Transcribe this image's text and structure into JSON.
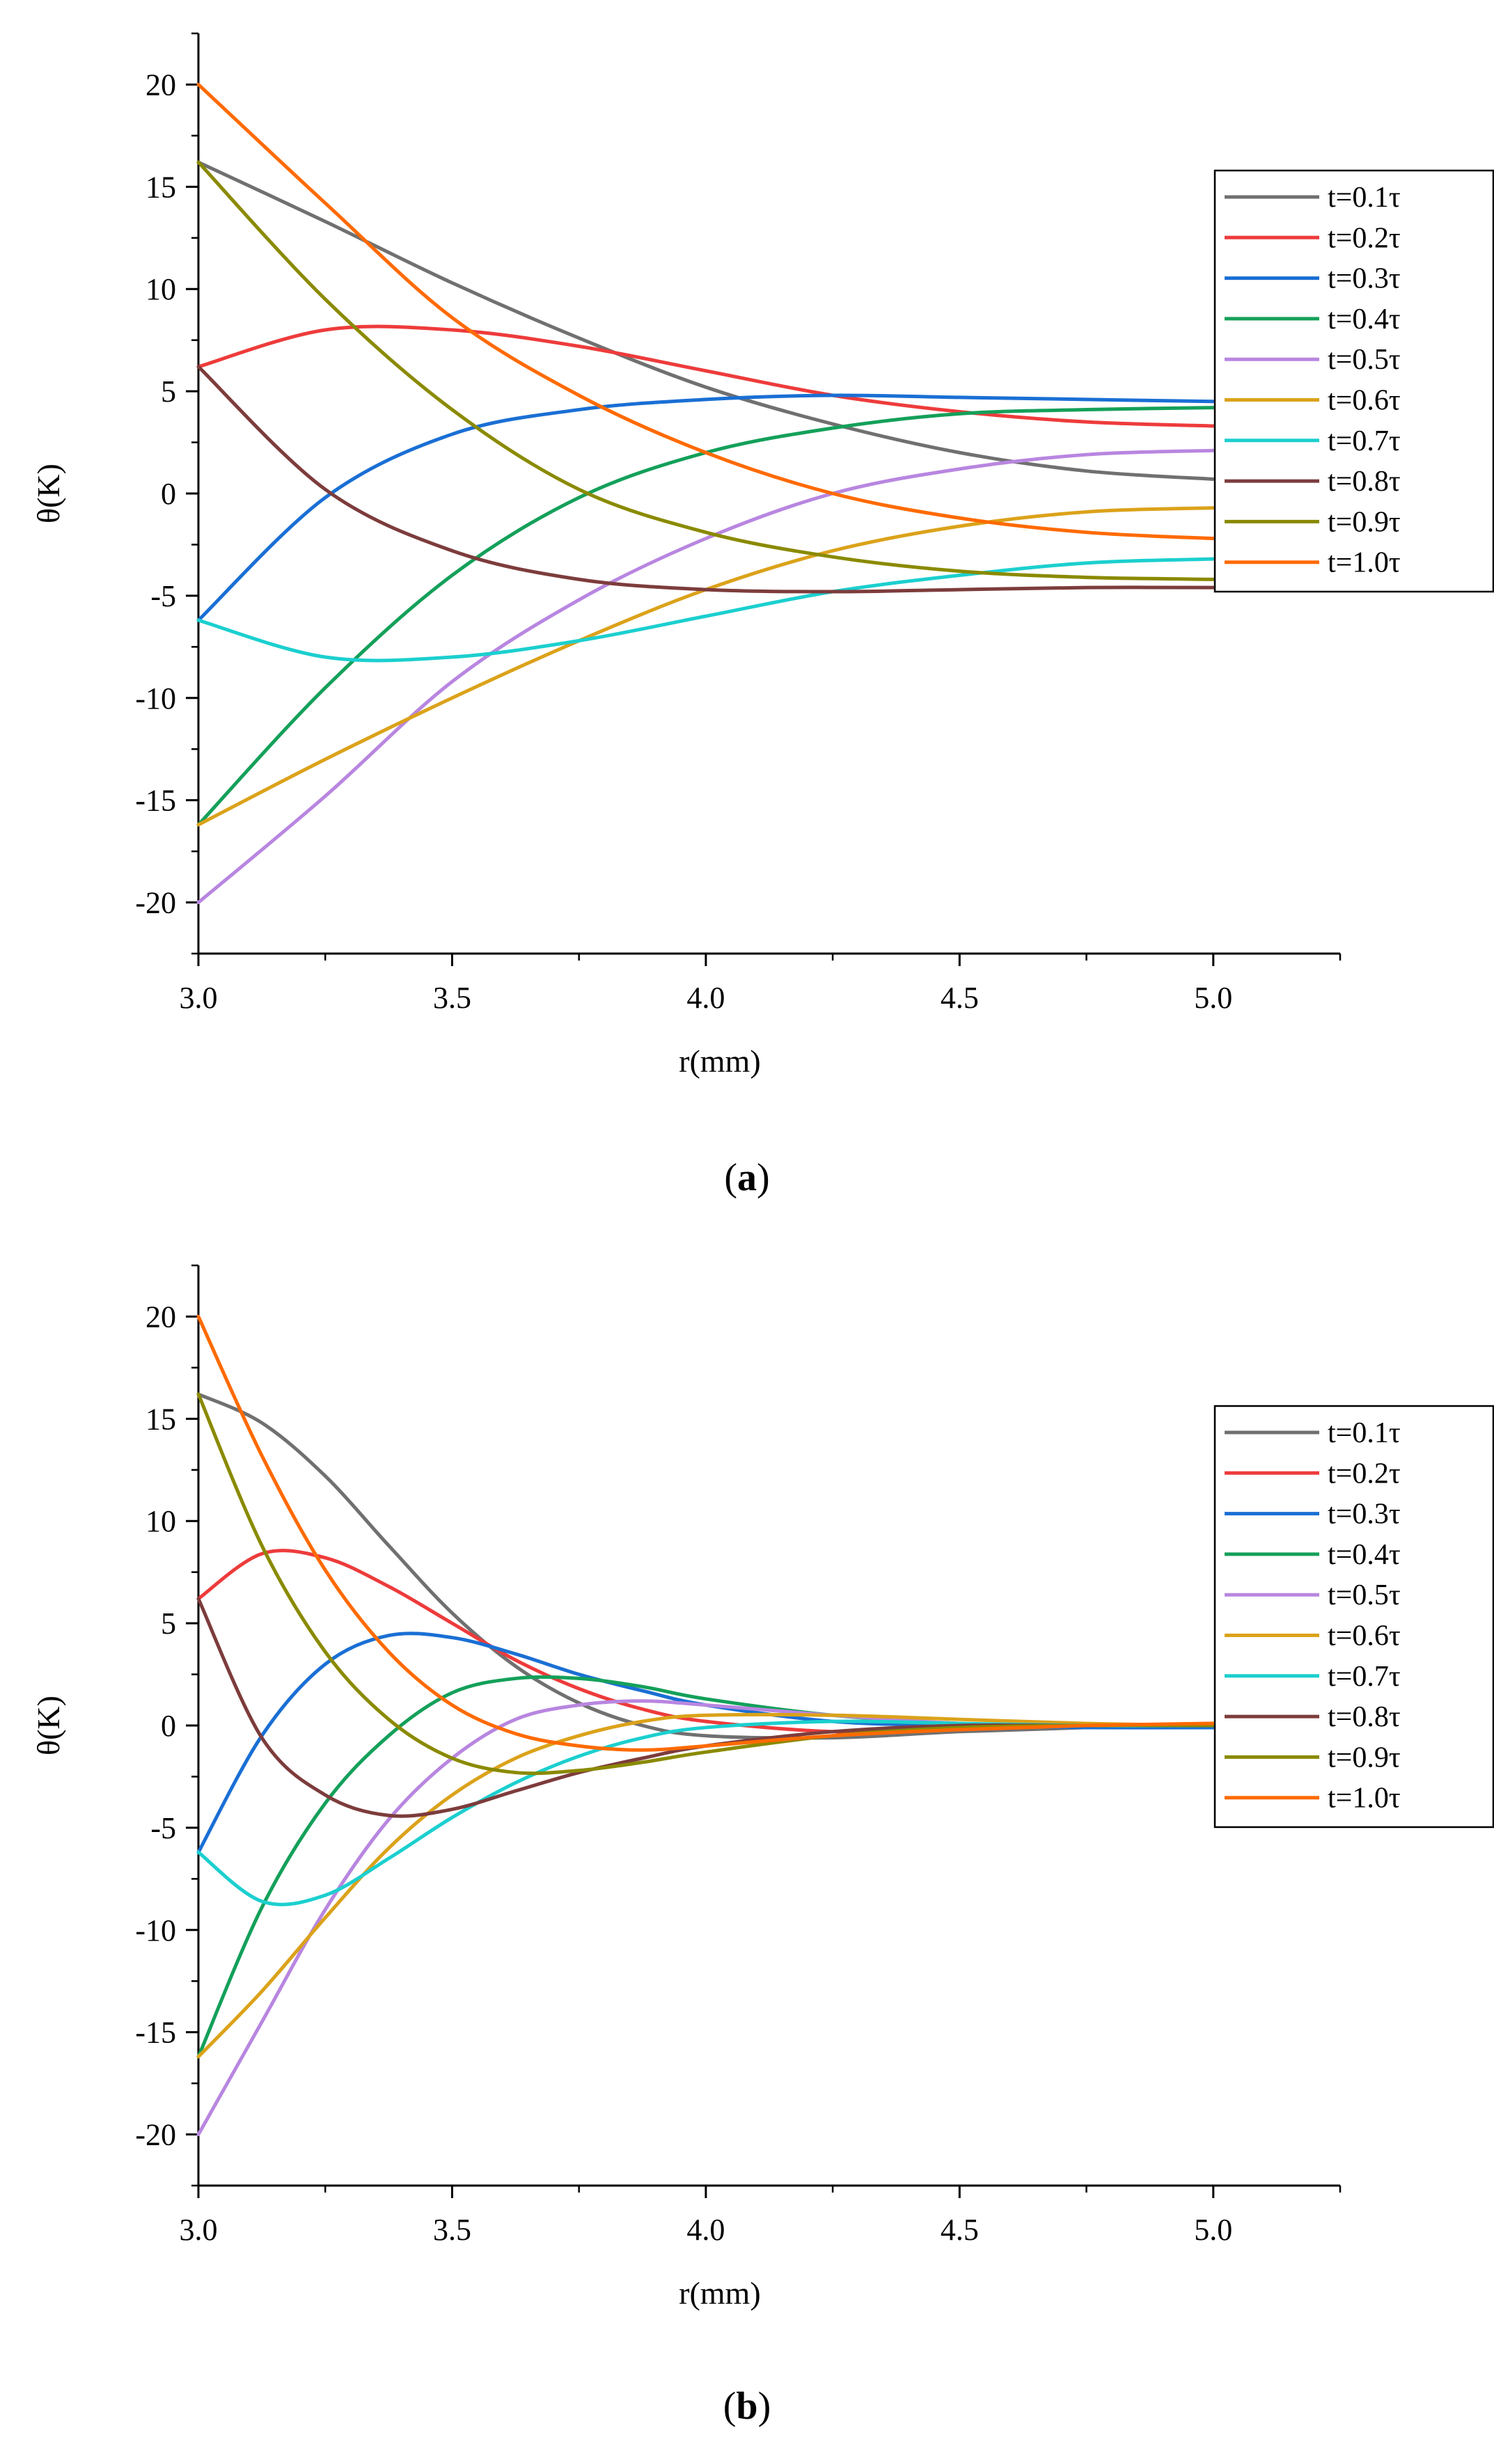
{
  "chart_data": [
    {
      "type": "line",
      "panel_label": "a",
      "xlabel": "r(mm)",
      "ylabel": "θ(K)",
      "xlim": [
        3.0,
        5.25
      ],
      "ylim": [
        -22.5,
        22.5
      ],
      "xticks": [
        3.0,
        3.5,
        4.0,
        4.5,
        5.0
      ],
      "xtick_labels": [
        "3.0",
        "3.5",
        "4.0",
        "4.5",
        "5.0"
      ],
      "yticks": [
        20,
        15,
        10,
        5,
        0,
        -5,
        -10,
        -15,
        -20
      ],
      "ytick_labels": [
        "20",
        "15",
        "10",
        "5",
        "0",
        "-5",
        "-10",
        "-15",
        "-20"
      ],
      "legend_position": "top-right",
      "x": [
        3.0,
        3.25,
        3.5,
        3.75,
        4.0,
        4.25,
        4.5,
        4.75,
        5.0
      ],
      "series": [
        {
          "name": "t=0.1τ",
          "color": "#707070",
          "values": [
            16.2,
            13.3,
            10.3,
            7.6,
            5.2,
            3.4,
            2.0,
            1.1,
            0.7
          ]
        },
        {
          "name": "t=0.2τ",
          "color": "#ee3b3b",
          "values": [
            6.2,
            8.0,
            8.0,
            7.2,
            6.0,
            4.8,
            4.0,
            3.5,
            3.3
          ]
        },
        {
          "name": "t=0.3τ",
          "color": "#1a6fd4",
          "values": [
            -6.2,
            -0.2,
            2.9,
            4.1,
            4.6,
            4.8,
            4.7,
            4.6,
            4.5
          ]
        },
        {
          "name": "t=0.4τ",
          "color": "#14a05a",
          "values": [
            -16.2,
            -9.5,
            -4.0,
            -0.2,
            2.0,
            3.2,
            3.9,
            4.1,
            4.2
          ]
        },
        {
          "name": "t=0.5τ",
          "color": "#b886e0",
          "values": [
            -20.0,
            -14.8,
            -9.2,
            -5.2,
            -2.2,
            0.0,
            1.2,
            1.9,
            2.1
          ]
        },
        {
          "name": "t=0.6τ",
          "color": "#dba21a",
          "values": [
            -16.2,
            -13.0,
            -10.0,
            -7.2,
            -4.7,
            -2.8,
            -1.6,
            -0.9,
            -0.7
          ]
        },
        {
          "name": "t=0.7τ",
          "color": "#1ccfcf",
          "values": [
            -6.2,
            -8.0,
            -8.0,
            -7.2,
            -6.0,
            -4.8,
            -4.0,
            -3.4,
            -3.2
          ]
        },
        {
          "name": "t=0.8τ",
          "color": "#7d3c3c",
          "values": [
            6.2,
            0.2,
            -2.8,
            -4.2,
            -4.7,
            -4.8,
            -4.7,
            -4.6,
            -4.6
          ]
        },
        {
          "name": "t=0.9τ",
          "color": "#8a8a00",
          "values": [
            16.2,
            9.5,
            4.1,
            0.2,
            -1.9,
            -3.1,
            -3.8,
            -4.1,
            -4.2
          ]
        },
        {
          "name": "t=1.0τ",
          "color": "#ff6a00",
          "values": [
            20.0,
            14.2,
            8.6,
            4.8,
            2.0,
            0.0,
            -1.2,
            -1.9,
            -2.2
          ]
        }
      ]
    },
    {
      "type": "line",
      "panel_label": "b",
      "xlabel": "r(mm)",
      "ylabel": "θ(K)",
      "xlim": [
        3.0,
        5.25
      ],
      "ylim": [
        -22.5,
        22.5
      ],
      "xticks": [
        3.0,
        3.5,
        4.0,
        4.5,
        5.0
      ],
      "xtick_labels": [
        "3.0",
        "3.5",
        "4.0",
        "4.5",
        "5.0"
      ],
      "yticks": [
        20,
        15,
        10,
        5,
        0,
        -5,
        -10,
        -15,
        -20
      ],
      "ytick_labels": [
        "20",
        "15",
        "10",
        "5",
        "0",
        "-5",
        "-10",
        "-15",
        "-20"
      ],
      "legend_position": "top-right",
      "x": [
        3.0,
        3.125,
        3.25,
        3.375,
        3.5,
        3.625,
        3.75,
        3.875,
        4.0,
        4.25,
        4.5,
        4.75,
        5.0
      ],
      "series": [
        {
          "name": "t=0.1τ",
          "color": "#707070",
          "values": [
            16.2,
            14.8,
            12.2,
            8.8,
            5.5,
            2.9,
            1.1,
            0.0,
            -0.5,
            -0.6,
            -0.3,
            -0.1,
            0.0
          ]
        },
        {
          "name": "t=0.2τ",
          "color": "#ee3b3b",
          "values": [
            6.2,
            8.4,
            8.2,
            6.8,
            5.0,
            3.2,
            1.8,
            0.8,
            0.2,
            -0.3,
            -0.2,
            0.0,
            0.0
          ]
        },
        {
          "name": "t=0.3τ",
          "color": "#1a6fd4",
          "values": [
            -6.2,
            -0.5,
            3.0,
            4.4,
            4.3,
            3.5,
            2.5,
            1.7,
            1.0,
            0.2,
            0.0,
            -0.1,
            -0.1
          ]
        },
        {
          "name": "t=0.4τ",
          "color": "#14a05a",
          "values": [
            -16.2,
            -8.9,
            -3.8,
            -0.5,
            1.6,
            2.3,
            2.3,
            1.9,
            1.3,
            0.5,
            0.1,
            0.0,
            0.0
          ]
        },
        {
          "name": "t=0.5τ",
          "color": "#b886e0",
          "values": [
            -20.0,
            -14.5,
            -9.0,
            -4.6,
            -1.6,
            0.3,
            1.0,
            1.2,
            1.0,
            0.5,
            0.1,
            0.0,
            0.0
          ]
        },
        {
          "name": "t=0.6τ",
          "color": "#dba21a",
          "values": [
            -16.2,
            -13.0,
            -9.4,
            -6.0,
            -3.4,
            -1.6,
            -0.5,
            0.2,
            0.5,
            0.5,
            0.3,
            0.1,
            0.0
          ]
        },
        {
          "name": "t=0.7τ",
          "color": "#1ccfcf",
          "values": [
            -6.2,
            -8.6,
            -8.3,
            -6.5,
            -4.5,
            -2.8,
            -1.5,
            -0.6,
            -0.1,
            0.2,
            0.1,
            0.0,
            0.0
          ]
        },
        {
          "name": "t=0.8τ",
          "color": "#7d3c3c",
          "values": [
            6.2,
            -0.6,
            -3.4,
            -4.4,
            -4.1,
            -3.2,
            -2.3,
            -1.6,
            -1.0,
            -0.3,
            0.0,
            0.0,
            0.1
          ]
        },
        {
          "name": "t=0.9τ",
          "color": "#8a8a00",
          "values": [
            16.2,
            8.8,
            3.6,
            0.3,
            -1.6,
            -2.3,
            -2.2,
            -1.8,
            -1.3,
            -0.5,
            -0.1,
            0.0,
            0.0
          ]
        },
        {
          "name": "t=1.0τ",
          "color": "#ff6a00",
          "values": [
            20.0,
            13.2,
            7.6,
            3.6,
            1.0,
            -0.4,
            -1.0,
            -1.2,
            -1.0,
            -0.5,
            -0.2,
            0.0,
            0.1
          ]
        }
      ]
    }
  ]
}
